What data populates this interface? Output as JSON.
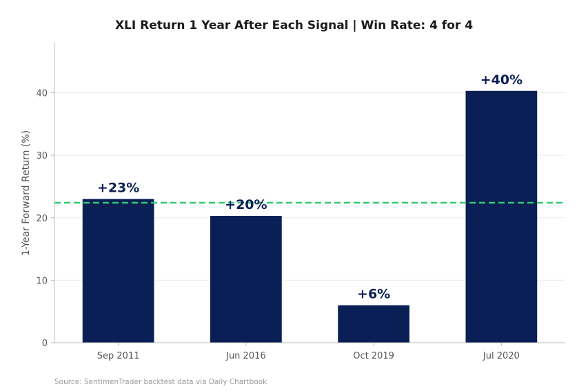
{
  "chart_data": {
    "type": "bar",
    "title": "XLI Return 1 Year After Each Signal  |  Win Rate: 4 for 4",
    "ylabel": "1-Year Forward Return (%)",
    "xlabel": "",
    "categories": [
      "Sep 2011",
      "Jun 2016",
      "Oct 2019",
      "Jul 2020"
    ],
    "values": [
      23,
      20.3,
      6,
      40.3
    ],
    "data_labels": [
      "+23%",
      "+20%",
      "+6%",
      "+40%"
    ],
    "ylim": [
      0,
      48
    ],
    "yticks": [
      0,
      10,
      20,
      30,
      40
    ],
    "average_line": 22.4,
    "grid": true,
    "colors": {
      "bar": "#0a1f55",
      "average_line": "#2ecc71",
      "grid": "#ececec",
      "axis": "#bbbbbb"
    }
  },
  "source": "Source: SentimenTrader backtest data via Daily Chartbook"
}
